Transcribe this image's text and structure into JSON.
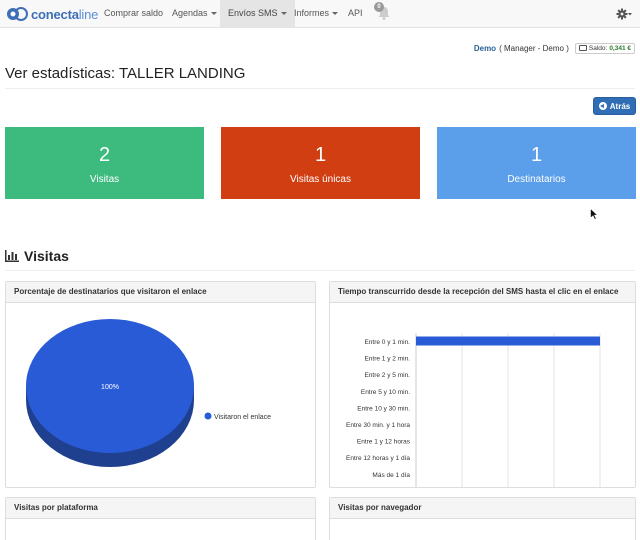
{
  "brand": {
    "name_bold": "conecta",
    "name_light": "line"
  },
  "nav": {
    "items": [
      {
        "label": "Comprar saldo",
        "dropdown": false,
        "active": false
      },
      {
        "label": "Agendas",
        "dropdown": true,
        "active": false
      },
      {
        "label": "Envíos SMS",
        "dropdown": true,
        "active": true
      },
      {
        "label": "Informes",
        "dropdown": true,
        "active": false
      },
      {
        "label": "API",
        "dropdown": false,
        "active": false
      }
    ],
    "notifications_count": "0"
  },
  "user": {
    "name": "Demo",
    "role": "( Manager - Demo )",
    "balance_label": "Saldo:",
    "balance_value": "0,341 €"
  },
  "page": {
    "title": "Ver estadísticas: TALLER LANDING",
    "back_label": "Atrás"
  },
  "stats": [
    {
      "value": "2",
      "label": "Visitas",
      "color": "#3dbb7f"
    },
    {
      "value": "1",
      "label": "Visitas únicas",
      "color": "#d13e12"
    },
    {
      "value": "1",
      "label": "Destinatarios",
      "color": "#5b9ee9"
    }
  ],
  "section": {
    "title": "Visitas"
  },
  "panels": {
    "pie_title": "Porcentaje de destinatarios que visitaron el enlace",
    "bar_title": "Tiempo transcurrido desde la recepción del SMS hasta el clic en el enlace",
    "platform_title": "Visitas por plataforma",
    "browser_title": "Visitas por navegador"
  },
  "colors": {
    "accent": "#2f6db5",
    "series": "#2a5bd7",
    "series_dark": "#1f3f8f"
  },
  "chart_data": [
    {
      "type": "pie",
      "title": "Porcentaje de destinatarios que visitaron el enlace",
      "slices": [
        {
          "label": "Visitaron el enlace",
          "value": 100,
          "display": "100%"
        }
      ],
      "legend": "right"
    },
    {
      "type": "bar",
      "orientation": "horizontal",
      "title": "Tiempo transcurrido desde la recepción del SMS hasta el clic en el enlace",
      "categories": [
        "Entre 0 y 1 min.",
        "Entre 1 y 2 min.",
        "Entre 2 y 5 min.",
        "Entre 5 y 10 min.",
        "Entre 10 y 30 min.",
        "Entre 30 min. y 1 hora",
        "Entre 1 y 12 horas",
        "Entre 12 horas y 1 día",
        "Más de 1 día"
      ],
      "values": [
        1,
        0,
        0,
        0,
        0,
        0,
        0,
        0,
        0
      ],
      "xlim": [
        0,
        1
      ],
      "grid": true
    }
  ]
}
